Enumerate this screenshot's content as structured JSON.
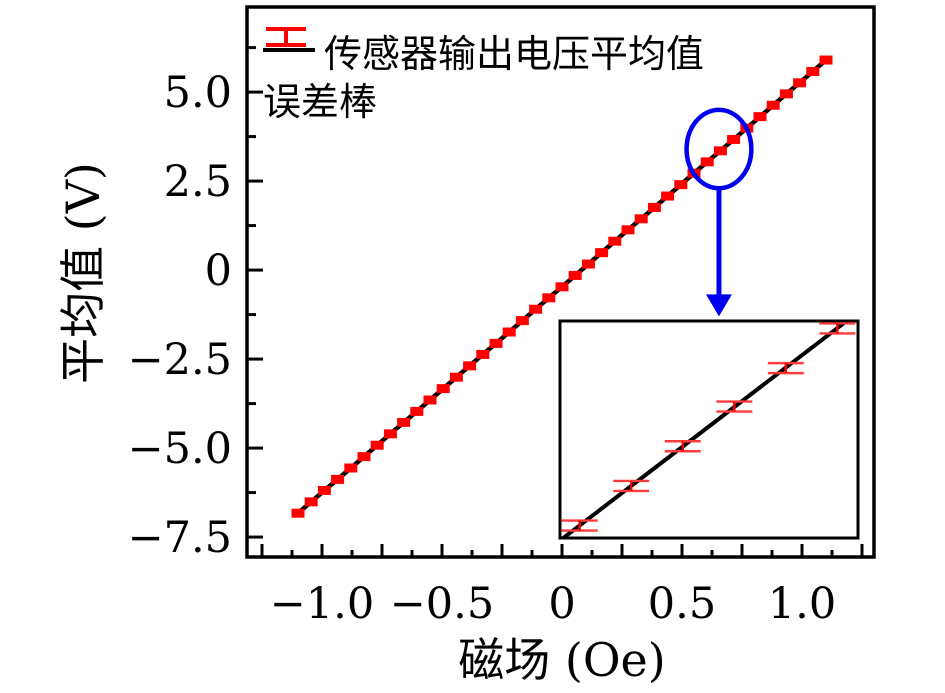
{
  "chart_data": {
    "type": "line",
    "title": "",
    "xlabel": "磁场 (Oe)",
    "ylabel": "平均值 (V)",
    "xlim": [
      -1.3125,
      1.3
    ],
    "ylim": [
      -8.06,
      7.39
    ],
    "grid": false,
    "x_ticks": {
      "values": [
        -1.0,
        -0.5,
        0,
        0.5,
        1.0
      ],
      "labels": [
        "−1.0",
        "−0.5",
        "0",
        "0.5",
        "1.0"
      ],
      "tick_step": 0.125,
      "long_tick_step": 0.25
    },
    "y_ticks": {
      "values": [
        5.0,
        2.5,
        0,
        -2.5,
        -5.0,
        -7.5
      ],
      "labels": [
        "5.0",
        "2.5",
        "0",
        "−2.5",
        "−5.0",
        "−7.5"
      ],
      "minor": [
        6.25,
        3.75,
        1.25,
        -1.25,
        -3.75,
        -6.25
      ]
    },
    "legend": [
      {
        "label": "传感器输出电压平均值",
        "type": "line",
        "color": "#000000"
      },
      {
        "label": "误差棒",
        "type": "errorbar",
        "color": "#ff0000"
      }
    ],
    "series": [
      {
        "name": "传感器输出电压平均值",
        "marker": "red-errorbar-square",
        "yerr": 0.12,
        "fit": {
          "slope": 5.786,
          "intercept": -0.465
        },
        "x": [
          -1.1,
          -1.045,
          -0.99,
          -0.935,
          -0.88,
          -0.825,
          -0.77,
          -0.715,
          -0.66,
          -0.605,
          -0.55,
          -0.495,
          -0.44,
          -0.385,
          -0.33,
          -0.275,
          -0.22,
          -0.165,
          -0.11,
          -0.055,
          0,
          0.055,
          0.11,
          0.165,
          0.22,
          0.275,
          0.33,
          0.385,
          0.44,
          0.495,
          0.55,
          0.605,
          0.66,
          0.715,
          0.77,
          0.825,
          0.88,
          0.935,
          0.99,
          1.045,
          1.1
        ],
        "y": [
          -6.83,
          -6.51,
          -6.19,
          -5.88,
          -5.56,
          -5.24,
          -4.92,
          -4.6,
          -4.28,
          -3.97,
          -3.65,
          -3.33,
          -3.01,
          -2.69,
          -2.37,
          -2.06,
          -1.74,
          -1.42,
          -1.1,
          -0.78,
          -0.47,
          -0.15,
          0.17,
          0.49,
          0.81,
          1.13,
          1.44,
          1.76,
          2.08,
          2.4,
          2.72,
          3.04,
          3.35,
          3.67,
          3.99,
          4.31,
          4.63,
          4.95,
          5.26,
          5.58,
          5.9
        ]
      }
    ],
    "annotation": {
      "ellipse": {
        "H": 0.654,
        "V": 3.4,
        "rx_Oe": 0.135,
        "ry_V": 1.1
      },
      "arrow": {
        "H": 0.654,
        "from_V": 2.25,
        "to_V": -1.3,
        "direction": "down"
      }
    },
    "inset": {
      "xlim": [
        0.509,
        0.827
      ],
      "ylim": [
        2.5,
        4.25
      ],
      "x": [
        0.53,
        0.585,
        0.64,
        0.695,
        0.75,
        0.805
      ],
      "y": [
        2.6,
        2.92,
        3.24,
        3.56,
        3.87,
        4.19
      ],
      "yerr": 0.045
    }
  },
  "colors": {
    "line": "#000000",
    "error": "#ff0000",
    "error_light": "#ff3b3b",
    "annotation_blue": "#0000f0",
    "background": "#ffffff",
    "text": "#000000"
  }
}
